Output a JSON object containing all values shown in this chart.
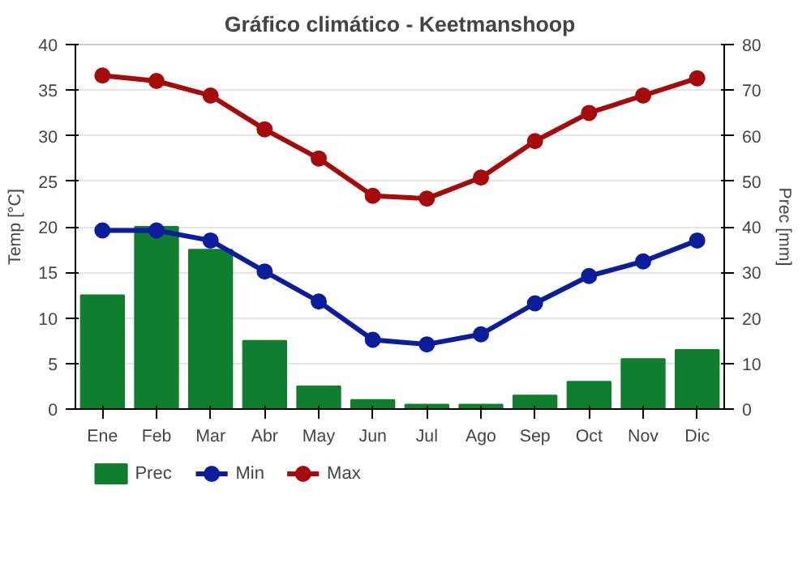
{
  "chart_data": {
    "type": "line",
    "title": "Gráfico climático - Keetmanshoop",
    "ylabel": "Temp [°C]",
    "y2label": "Prec [mm]",
    "categories": [
      "Ene",
      "Feb",
      "Mar",
      "Abr",
      "May",
      "Jun",
      "Jul",
      "Ago",
      "Sep",
      "Oct",
      "Nov",
      "Dic"
    ],
    "ylim": [
      0,
      40
    ],
    "yticks": [
      0,
      5,
      10,
      15,
      20,
      25,
      30,
      35,
      40
    ],
    "y2lim": [
      0,
      80
    ],
    "y2ticks": [
      0,
      10,
      20,
      30,
      40,
      50,
      60,
      70,
      80
    ],
    "grid": "y",
    "legend": "bottom",
    "marker": "circle",
    "series": [
      {
        "name": "Prec",
        "type": "bar",
        "axis": "y2",
        "color": "#0f7e2f",
        "values": [
          25,
          40,
          35,
          15,
          5,
          2,
          1,
          1,
          3,
          6,
          11,
          13
        ]
      },
      {
        "name": "Min",
        "color": "#0b1d9c",
        "values": [
          19.6,
          19.6,
          18.5,
          15.1,
          11.8,
          7.6,
          7.1,
          8.2,
          11.6,
          14.6,
          16.2,
          18.5
        ]
      },
      {
        "name": "Max",
        "color": "#a50b0b",
        "values": [
          36.6,
          36.0,
          34.4,
          30.7,
          27.5,
          23.4,
          23.1,
          25.4,
          29.4,
          32.5,
          34.4,
          36.3
        ]
      }
    ]
  }
}
